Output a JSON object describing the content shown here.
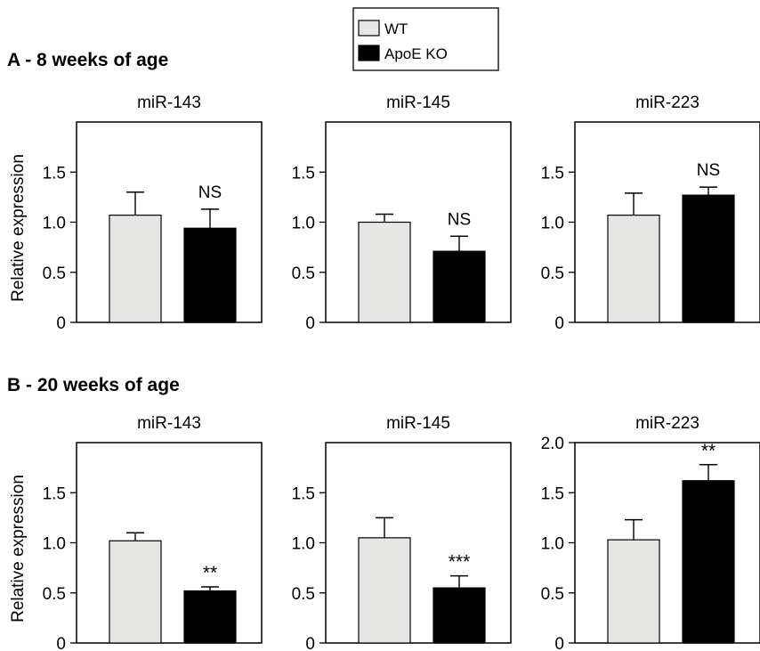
{
  "legend": {
    "items": [
      {
        "label": "WT",
        "color": "#e6e6e4"
      },
      {
        "label": "ApoE KO",
        "color": "#000000"
      }
    ]
  },
  "panels": [
    {
      "label": "A - 8 weeks of age"
    },
    {
      "label": "B - 20 weeks of age"
    }
  ],
  "ylabel": "Relative expression",
  "colors": {
    "wt": "#e6e6e4",
    "ko": "#000000",
    "axis": "#000000"
  },
  "chart_data": [
    {
      "type": "bar",
      "panel": "A - 8 weeks of age",
      "title": "miR-143",
      "categories": [
        "WT",
        "ApoE KO"
      ],
      "values": [
        1.07,
        0.94
      ],
      "errors": [
        0.23,
        0.19
      ],
      "annotation": "NS",
      "ylim": [
        0,
        2.0
      ],
      "yticks": [
        0,
        0.5,
        1.0,
        1.5
      ],
      "ytick_labels": [
        "0",
        "0.5",
        "1.0",
        "1.5"
      ],
      "ylabel": "Relative expression",
      "grid": false
    },
    {
      "type": "bar",
      "panel": "A - 8 weeks of age",
      "title": "miR-145",
      "categories": [
        "WT",
        "ApoE KO"
      ],
      "values": [
        1.0,
        0.71
      ],
      "errors": [
        0.08,
        0.15
      ],
      "annotation": "NS",
      "ylim": [
        0,
        2.0
      ],
      "yticks": [
        0,
        0.5,
        1.0,
        1.5
      ],
      "ytick_labels": [
        "0",
        "0.5",
        "1.0",
        "1.5"
      ],
      "ylabel": "",
      "grid": false
    },
    {
      "type": "bar",
      "panel": "A - 8 weeks of age",
      "title": "miR-223",
      "categories": [
        "WT",
        "ApoE KO"
      ],
      "values": [
        1.07,
        1.27
      ],
      "errors": [
        0.22,
        0.08
      ],
      "annotation": "NS",
      "ylim": [
        0,
        2.0
      ],
      "yticks": [
        0,
        0.5,
        1.0,
        1.5
      ],
      "ytick_labels": [
        "0",
        "0.5",
        "1.0",
        "1.5"
      ],
      "ylabel": "",
      "grid": false
    },
    {
      "type": "bar",
      "panel": "B - 20 weeks of age",
      "title": "miR-143",
      "categories": [
        "WT",
        "ApoE KO"
      ],
      "values": [
        1.02,
        0.52
      ],
      "errors": [
        0.08,
        0.04
      ],
      "annotation": "**",
      "ylim": [
        0,
        2.0
      ],
      "yticks": [
        0,
        0.5,
        1.0,
        1.5
      ],
      "ytick_labels": [
        "0",
        "0.5",
        "1.0",
        "1.5"
      ],
      "ylabel": "Relative expression",
      "grid": false
    },
    {
      "type": "bar",
      "panel": "B - 20 weeks of age",
      "title": "miR-145",
      "categories": [
        "WT",
        "ApoE KO"
      ],
      "values": [
        1.05,
        0.55
      ],
      "errors": [
        0.2,
        0.12
      ],
      "annotation": "***",
      "ylim": [
        0,
        2.0
      ],
      "yticks": [
        0,
        0.5,
        1.0,
        1.5
      ],
      "ytick_labels": [
        "0",
        "0.5",
        "1.0",
        "1.5"
      ],
      "ylabel": "",
      "grid": false
    },
    {
      "type": "bar",
      "panel": "B - 20 weeks of age",
      "title": "miR-223",
      "categories": [
        "WT",
        "ApoE KO"
      ],
      "values": [
        1.03,
        1.62
      ],
      "errors": [
        0.2,
        0.16
      ],
      "annotation": "**",
      "ylim": [
        0,
        2.0
      ],
      "yticks": [
        0,
        0.5,
        1.0,
        1.5,
        2.0
      ],
      "ytick_labels": [
        "0",
        "0.5",
        "1.0",
        "1.5",
        "2.0"
      ],
      "ylabel": "",
      "grid": false
    }
  ]
}
